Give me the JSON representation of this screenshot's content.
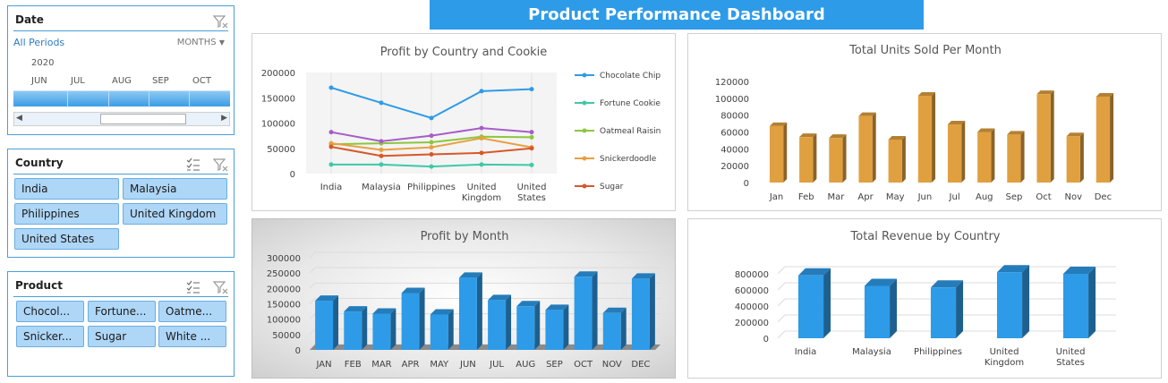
{
  "title": "Product Performance Dashboard",
  "date_slicer": {
    "title": "Date",
    "period_label": "All Periods",
    "level_label": "MONTHS",
    "year": "2020",
    "months": [
      "JUN",
      "JUL",
      "AUG",
      "SEP",
      "OCT"
    ]
  },
  "country_slicer": {
    "title": "Country",
    "items": [
      "India",
      "Malaysia",
      "Philippines",
      "United Kingdom",
      "United States"
    ]
  },
  "product_slicer": {
    "title": "Product",
    "items": [
      "Chocol...",
      "Fortune...",
      "Oatme...",
      "Snicker...",
      "Sugar",
      "White ..."
    ]
  },
  "colors": {
    "accent": "#2e9be8",
    "slicer_button": "#aed6f7",
    "orange_bar": "#e0a040",
    "blue_bar": "#2e9be8"
  },
  "charts": {
    "profit_country_cookie": {
      "type": "line",
      "title": "Profit by Country and Cookie",
      "categories": [
        "India",
        "Malaysia",
        "Philippines",
        "United Kingdom",
        "United States"
      ],
      "ylim": [
        0,
        200000
      ],
      "yticks": [
        "200000",
        "150000",
        "100000",
        "50000",
        "0"
      ],
      "series": [
        {
          "name": "Chocolate Chip",
          "color": "#2e9be8",
          "values": [
            170000,
            140000,
            110000,
            163000,
            167000
          ]
        },
        {
          "name": "Fortune Cookie",
          "color": "#3ec9a6",
          "values": [
            18000,
            18000,
            14000,
            18000,
            17000
          ]
        },
        {
          "name": "Oatmeal Raisin",
          "color": "#8cc63e",
          "values": [
            58000,
            60000,
            62000,
            73000,
            72000
          ]
        },
        {
          "name": "Snickerdoodle",
          "color": "#e8a040",
          "values": [
            60000,
            47000,
            52000,
            70000,
            52000
          ]
        },
        {
          "name": "Sugar",
          "color": "#d9572a",
          "values": [
            53000,
            35000,
            38000,
            41000,
            50000
          ]
        },
        {
          "name": "",
          "color": "#a55ec8",
          "values": [
            82000,
            64000,
            75000,
            90000,
            82000
          ]
        }
      ]
    },
    "units_per_month": {
      "type": "bar",
      "title": "Total Units Sold Per Month",
      "categories": [
        "Jan",
        "Feb",
        "Mar",
        "Apr",
        "May",
        "Jun",
        "Jul",
        "Aug",
        "Sep",
        "Oct",
        "Nov",
        "Dec"
      ],
      "values": [
        67000,
        54000,
        53000,
        79000,
        51000,
        103000,
        69000,
        60000,
        57000,
        105000,
        55000,
        102000
      ],
      "ylim": [
        0,
        120000
      ],
      "yticks": [
        "120000",
        "100000",
        "80000",
        "60000",
        "40000",
        "20000",
        "0"
      ]
    },
    "profit_by_month": {
      "type": "bar",
      "title": "Profit by Month",
      "categories": [
        "JAN",
        "FEB",
        "MAR",
        "APR",
        "MAY",
        "JUN",
        "JUL",
        "AUG",
        "SEP",
        "OCT",
        "NOV",
        "DEC"
      ],
      "values": [
        160000,
        125000,
        118000,
        185000,
        115000,
        235000,
        162000,
        142000,
        130000,
        238000,
        120000,
        232000
      ],
      "ylim": [
        0,
        300000
      ],
      "yticks": [
        "300000",
        "250000",
        "200000",
        "150000",
        "100000",
        "50000",
        "0"
      ]
    },
    "revenue_by_country": {
      "type": "bar",
      "title": "Total Revenue by Country",
      "categories": [
        "India",
        "Malaysia",
        "Philippines",
        "United Kingdom",
        "United States"
      ],
      "values": [
        780000,
        650000,
        630000,
        820000,
        800000
      ],
      "ylim": [
        0,
        800000
      ],
      "yticks": [
        "800000",
        "600000",
        "400000",
        "200000",
        "0"
      ]
    }
  }
}
